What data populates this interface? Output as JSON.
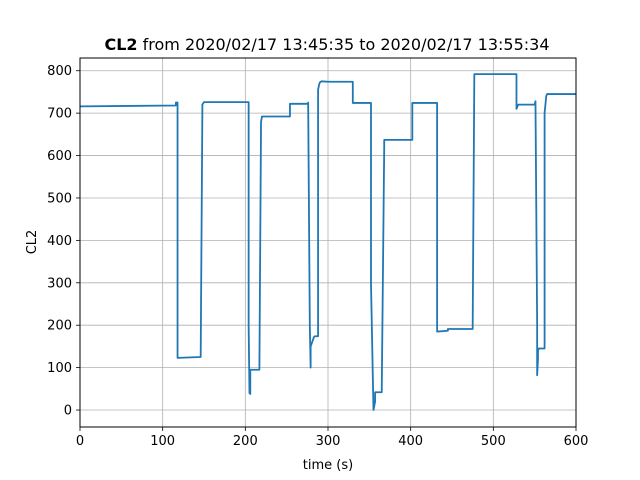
{
  "chart_data": {
    "type": "line",
    "title_bold": "CL2",
    "title_rest": " from 2020/02/17 13:45:35 to 2020/02/17 13:55:34",
    "xlabel": "time (s)",
    "ylabel": "CL2",
    "xlim": [
      0,
      600
    ],
    "ylim": [
      -40,
      830
    ],
    "xticks": [
      0,
      100,
      200,
      300,
      400,
      500,
      600
    ],
    "yticks": [
      0,
      100,
      200,
      300,
      400,
      500,
      600,
      700,
      800
    ],
    "grid": true,
    "line_color": "#1f77b4",
    "series": [
      {
        "x": [
          0,
          116,
          116,
          118,
          118,
          146,
          146,
          148,
          148,
          150,
          166,
          200,
          204,
          204,
          205,
          206,
          206,
          214,
          216,
          217,
          219,
          220,
          220,
          252,
          254,
          254,
          276,
          276,
          278,
          279,
          279,
          283,
          284,
          284,
          288,
          288,
          289,
          290,
          292,
          300,
          328,
          330,
          330,
          350,
          350,
          352,
          352,
          355,
          355,
          357,
          357,
          362,
          365,
          365,
          368,
          368,
          400,
          402,
          402,
          430,
          430,
          432,
          432,
          445,
          445,
          475,
          475,
          477,
          477,
          527,
          527,
          528,
          528,
          530,
          550,
          551,
          551,
          553,
          553,
          554,
          554,
          555,
          557,
          557,
          562,
          562,
          564,
          565,
          567,
          600
        ],
        "y": [
          716,
          718,
          725,
          725,
          123,
          125,
          125,
          700,
          720,
          726,
          726,
          726,
          726,
          200,
          40,
          38,
          95,
          95,
          95,
          95,
          680,
          690,
          692,
          692,
          692,
          722,
          722,
          725,
          200,
          100,
          150,
          172,
          174,
          174,
          174,
          755,
          765,
          772,
          775,
          774,
          774,
          774,
          724,
          724,
          724,
          724,
          300,
          0,
          0,
          20,
          42,
          42,
          42,
          42,
          620,
          637,
          637,
          637,
          724,
          724,
          724,
          724,
          185,
          187,
          191,
          191,
          192,
          790,
          792,
          792,
          792,
          792,
          710,
          720,
          720,
          728,
          723,
          200,
          82,
          120,
          140,
          145,
          145,
          145,
          145,
          700,
          740,
          745,
          745,
          745
        ]
      }
    ]
  }
}
